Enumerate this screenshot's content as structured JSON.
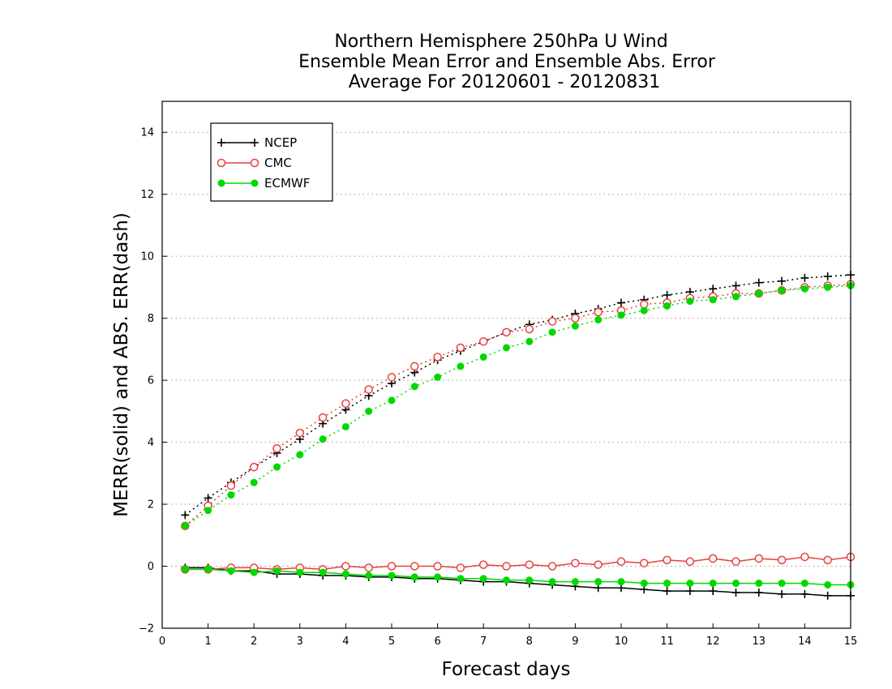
{
  "chart_data": {
    "type": "line",
    "title_lines": [
      "Northern Hemisphere 250hPa U Wind",
      "Ensemble Mean Error and Ensemble Abs. Error",
      "Average For 20120601 - 20120831"
    ],
    "xlabel": "Forecast days",
    "ylabel": "MERR(solid) and ABS. ERR(dash)",
    "xlim": [
      0,
      15
    ],
    "ylim": [
      -2,
      15
    ],
    "x_ticks": [
      0,
      1,
      2,
      3,
      4,
      5,
      6,
      7,
      8,
      9,
      10,
      11,
      12,
      13,
      14,
      15
    ],
    "x_tick_labels": [
      "0",
      "1",
      "2",
      "3",
      "4",
      "5",
      "6",
      "7",
      "8",
      "9",
      "10",
      "11",
      "12",
      "13",
      "14",
      "15"
    ],
    "y_ticks": [
      -2,
      0,
      2,
      4,
      6,
      8,
      10,
      12,
      14
    ],
    "y_tick_labels": [
      "−2",
      "0",
      "2",
      "4",
      "6",
      "8",
      "10",
      "12",
      "14"
    ],
    "grid": "horizontal dotted",
    "legend_position": "top-left",
    "x": [
      0.5,
      1,
      1.5,
      2,
      2.5,
      3,
      3.5,
      4,
      4.5,
      5,
      5.5,
      6,
      6.5,
      7,
      7.5,
      8,
      8.5,
      9,
      9.5,
      10,
      10.5,
      11,
      11.5,
      12,
      12.5,
      13,
      13.5,
      14,
      14.5,
      15
    ],
    "series": [
      {
        "name": "NCEP",
        "color": "#000000",
        "marker": "plus",
        "abs_err": [
          1.65,
          2.2,
          2.7,
          3.2,
          3.65,
          4.1,
          4.6,
          5.05,
          5.5,
          5.9,
          6.25,
          6.65,
          6.95,
          7.25,
          7.55,
          7.8,
          7.95,
          8.15,
          8.3,
          8.5,
          8.6,
          8.75,
          8.85,
          8.95,
          9.05,
          9.15,
          9.2,
          9.3,
          9.35,
          9.4
        ],
        "mean_err": [
          -0.05,
          -0.05,
          -0.15,
          -0.15,
          -0.25,
          -0.25,
          -0.3,
          -0.3,
          -0.35,
          -0.35,
          -0.4,
          -0.4,
          -0.45,
          -0.5,
          -0.5,
          -0.55,
          -0.6,
          -0.65,
          -0.7,
          -0.7,
          -0.75,
          -0.8,
          -0.8,
          -0.8,
          -0.85,
          -0.85,
          -0.9,
          -0.9,
          -0.95,
          -0.95
        ]
      },
      {
        "name": "CMC",
        "color": "#e8403c",
        "marker": "open-circle",
        "abs_err": [
          1.3,
          1.95,
          2.6,
          3.2,
          3.8,
          4.3,
          4.8,
          5.25,
          5.7,
          6.1,
          6.45,
          6.75,
          7.05,
          7.25,
          7.55,
          7.65,
          7.9,
          8.0,
          8.2,
          8.25,
          8.45,
          8.5,
          8.65,
          8.7,
          8.8,
          8.8,
          8.9,
          9.0,
          9.05,
          9.1
        ],
        "mean_err": [
          -0.1,
          -0.1,
          -0.05,
          -0.05,
          -0.1,
          -0.05,
          -0.1,
          0.0,
          -0.05,
          0.0,
          0.0,
          0.0,
          -0.05,
          0.05,
          0.0,
          0.05,
          0.0,
          0.1,
          0.05,
          0.15,
          0.1,
          0.2,
          0.15,
          0.25,
          0.15,
          0.25,
          0.2,
          0.3,
          0.2,
          0.3
        ]
      },
      {
        "name": "ECMWF",
        "color": "#00d800",
        "marker": "filled-circle",
        "abs_err": [
          1.3,
          1.8,
          2.3,
          2.7,
          3.2,
          3.6,
          4.1,
          4.5,
          5.0,
          5.35,
          5.8,
          6.1,
          6.45,
          6.75,
          7.05,
          7.25,
          7.55,
          7.75,
          7.95,
          8.1,
          8.25,
          8.4,
          8.55,
          8.6,
          8.7,
          8.8,
          8.9,
          8.95,
          9.0,
          9.05
        ],
        "mean_err": [
          -0.1,
          -0.1,
          -0.15,
          -0.2,
          -0.15,
          -0.2,
          -0.2,
          -0.25,
          -0.3,
          -0.3,
          -0.35,
          -0.35,
          -0.4,
          -0.4,
          -0.45,
          -0.45,
          -0.5,
          -0.5,
          -0.5,
          -0.5,
          -0.55,
          -0.55,
          -0.55,
          -0.55,
          -0.55,
          -0.55,
          -0.55,
          -0.55,
          -0.6,
          -0.6
        ]
      }
    ]
  }
}
